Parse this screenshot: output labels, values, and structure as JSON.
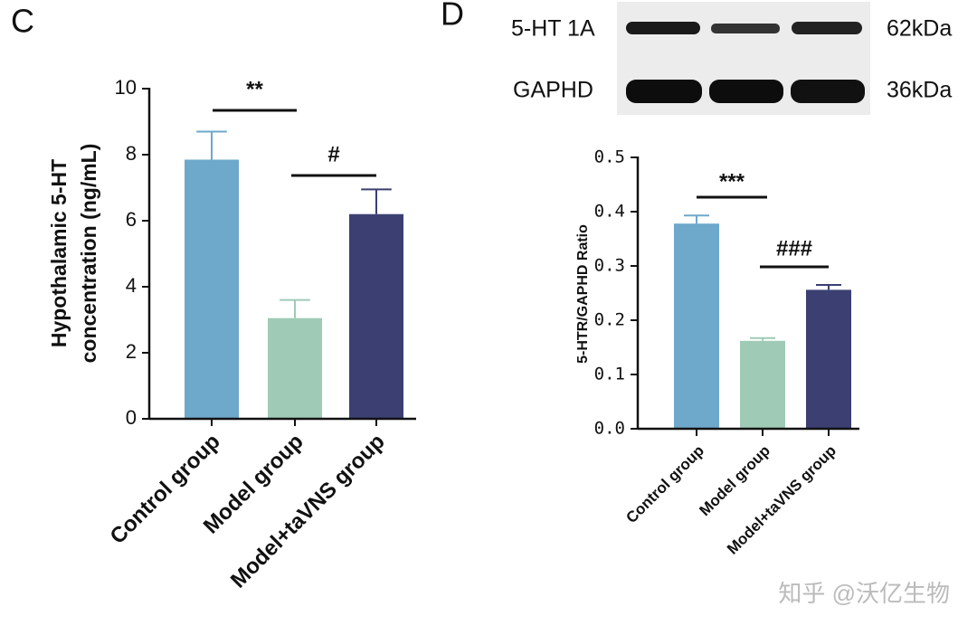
{
  "chart_data": [
    {
      "type": "bar",
      "panel": "C",
      "ylabel": [
        "Hypothalamic 5-HT",
        "concentration (ng/mL)"
      ],
      "categories": [
        "Control group",
        "Model group",
        "Model+taVNS group"
      ],
      "values": [
        7.85,
        3.05,
        6.2
      ],
      "errors": [
        0.85,
        0.55,
        0.75
      ],
      "colors": [
        "#6ea8cb",
        "#9fcbb6",
        "#3b3f72"
      ],
      "ylim": [
        0,
        10
      ],
      "yticks": [
        0,
        2,
        4,
        6,
        8,
        10
      ],
      "annotations": [
        "**",
        "#"
      ]
    },
    {
      "type": "bar",
      "panel": "D",
      "ylabel": [
        "5-HTR/GAPHD Ratio"
      ],
      "categories": [
        "Control group",
        "Model group",
        "Model+taVNS group"
      ],
      "values": [
        0.378,
        0.162,
        0.256
      ],
      "errors": [
        0.015,
        0.005,
        0.009
      ],
      "colors": [
        "#6ea8cb",
        "#9fcbb6",
        "#3b3f72"
      ],
      "ylim": [
        0,
        0.5
      ],
      "yticks": [
        {
          "value": 0,
          "label": "0.0"
        },
        0.1,
        0.2,
        0.3,
        0.4,
        0.5
      ],
      "annotations": [
        "***",
        "###"
      ]
    }
  ],
  "blot": {
    "bands": [
      "5-HT 1A",
      "GAPHD"
    ],
    "sizes": [
      "62kDa",
      "36kDa"
    ]
  },
  "watermark": "知乎 @沃亿生物"
}
